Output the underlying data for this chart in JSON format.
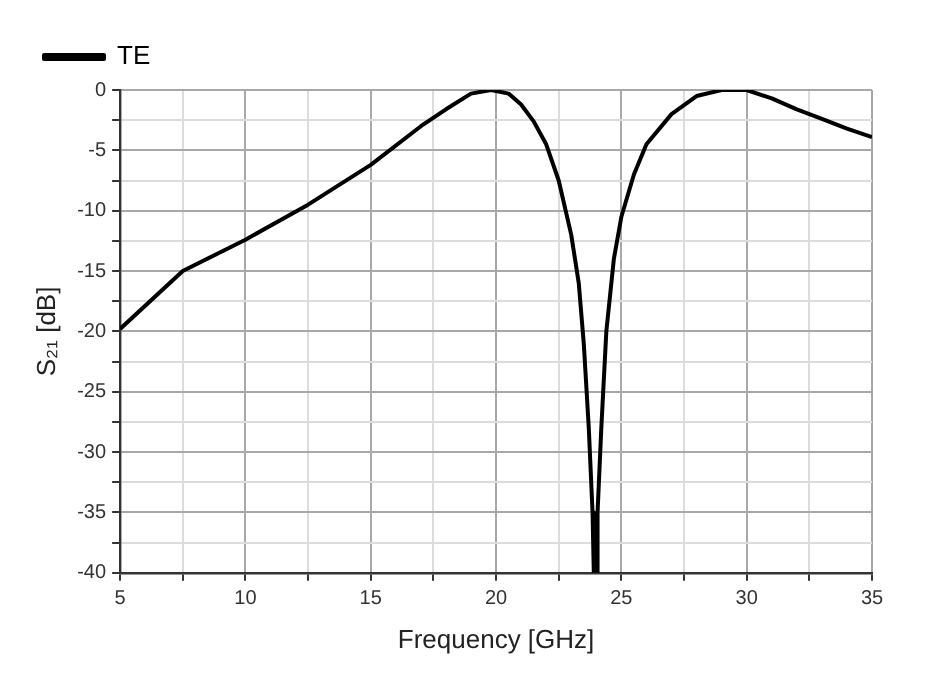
{
  "chart_data": {
    "type": "line",
    "xlabel": "Frequency [GHz]",
    "ylabel": "S₂₁ [dB]",
    "x": [
      5,
      7.5,
      10,
      12.5,
      15,
      17,
      18,
      19,
      19.8,
      20.5,
      21,
      21.5,
      22,
      22.5,
      23,
      23.3,
      23.5,
      23.7,
      23.85,
      23.9,
      24,
      24.05,
      24.2,
      24.4,
      24.7,
      25,
      25.5,
      26,
      27,
      28,
      29,
      30,
      31,
      32,
      33,
      34,
      35
    ],
    "series": [
      {
        "name": "TE",
        "color": "#000000",
        "values": [
          -19.8,
          -15,
          -12.4,
          -9.5,
          -6.2,
          -3,
          -1.6,
          -0.3,
          0,
          -0.3,
          -1.2,
          -2.6,
          -4.5,
          -7.5,
          -12,
          -16,
          -21,
          -28,
          -35,
          -40,
          -40,
          -35,
          -28,
          -20,
          -14,
          -10.5,
          -7,
          -4.5,
          -2,
          -0.5,
          0,
          0,
          -0.7,
          -1.6,
          -2.4,
          -3.2,
          -3.9
        ]
      }
    ],
    "xlim": [
      5,
      35
    ],
    "ylim": [
      -40,
      0
    ],
    "xticks": [
      5,
      {
        "value": 7.5,
        "label": null
      },
      10,
      {
        "value": 12.5,
        "label": null
      },
      15,
      {
        "value": 17.5,
        "label": null
      },
      20,
      {
        "value": 22.5,
        "label": null
      },
      25,
      {
        "value": 27.5,
        "label": null
      },
      30,
      {
        "value": 32.5,
        "label": null
      },
      35
    ],
    "yticks": [
      -40,
      {
        "value": -37.5,
        "label": null
      },
      -35,
      {
        "value": -32.5,
        "label": null
      },
      -30,
      {
        "value": -27.5,
        "label": null
      },
      -25,
      {
        "value": -22.5,
        "label": null
      },
      -20,
      {
        "value": -17.5,
        "label": null
      },
      -15,
      {
        "value": -12.5,
        "label": null
      },
      -10,
      {
        "value": -7.5,
        "label": null
      },
      -5,
      {
        "value": -2.5,
        "label": null
      },
      0
    ],
    "grid": true,
    "legend": "top left",
    "marker": "none",
    "line_style": "solid"
  }
}
